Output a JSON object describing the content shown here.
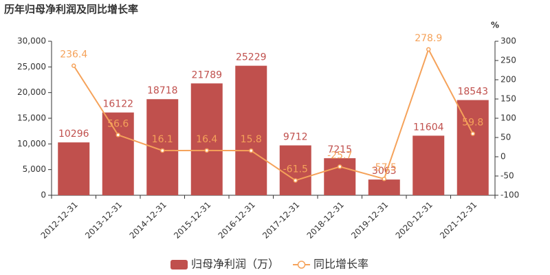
{
  "chart_data": {
    "type": "bar",
    "title": "历年归母净利润及同比增长率",
    "categories": [
      "2012-12-31",
      "2013-12-31",
      "2014-12-31",
      "2015-12-31",
      "2016-12-31",
      "2017-12-31",
      "2018-12-31",
      "2019-12-31",
      "2020-12-31",
      "2021-12-31"
    ],
    "series": [
      {
        "name": "归母净利润（万）",
        "type": "bar",
        "color": "#c0504d",
        "values": [
          10296,
          16122,
          18718,
          21789,
          25229,
          9712,
          7215,
          3063,
          11604,
          18543
        ]
      },
      {
        "name": "同比增长率",
        "type": "line",
        "axis": "y2",
        "color": "#f5a25a",
        "values": [
          236.4,
          56.6,
          16.1,
          16.4,
          15.8,
          -61.5,
          -25.7,
          -57.5,
          278.9,
          59.8
        ]
      }
    ],
    "ylim": [
      0,
      30000
    ],
    "yticks": [
      0,
      {
        "value": 5000,
        "label": "5,000"
      },
      {
        "value": 10000,
        "label": "10,000"
      },
      {
        "value": 15000,
        "label": "15,000"
      },
      {
        "value": 20000,
        "label": "20,000"
      },
      {
        "value": 25000,
        "label": "25,000"
      },
      {
        "value": 30000,
        "label": "30,000"
      }
    ],
    "y2label": "%",
    "y2lim": [
      -100,
      300
    ],
    "y2ticks": [
      -100,
      -50,
      0,
      50,
      100,
      150,
      200,
      250,
      300
    ],
    "grid": false,
    "legend": "bottom"
  }
}
